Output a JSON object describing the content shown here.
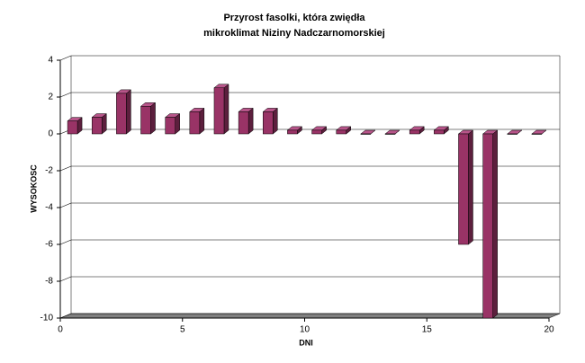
{
  "chart_data": {
    "type": "bar",
    "title": [
      "Przyrost fasolki, która zwiędła",
      "mikroklimat Niziny Nadczarnomorskiej"
    ],
    "x_label": "DNI",
    "y_label": "WYSOKOSC",
    "x": [
      0.5,
      1.5,
      2.5,
      3.5,
      4.5,
      5.5,
      6.5,
      7.5,
      8.5,
      9.5,
      10.5,
      11.5,
      12.5,
      13.5,
      14.5,
      15.5,
      16.5,
      17.5,
      18.5,
      19.5
    ],
    "values": [
      0.7,
      0.9,
      2.2,
      1.5,
      0.9,
      1.2,
      2.5,
      1.2,
      1.2,
      0.2,
      0.2,
      0.2,
      0,
      0,
      0.2,
      0.2,
      -6,
      -10,
      0,
      0
    ],
    "color": "#993366",
    "xlim": [
      0,
      20
    ],
    "xticks": [
      0,
      5,
      10,
      15,
      20
    ],
    "ylim": [
      -10,
      4
    ],
    "yticks": [
      -10,
      -8,
      -6,
      -4,
      -2,
      0,
      2,
      4
    ],
    "grid": true
  }
}
